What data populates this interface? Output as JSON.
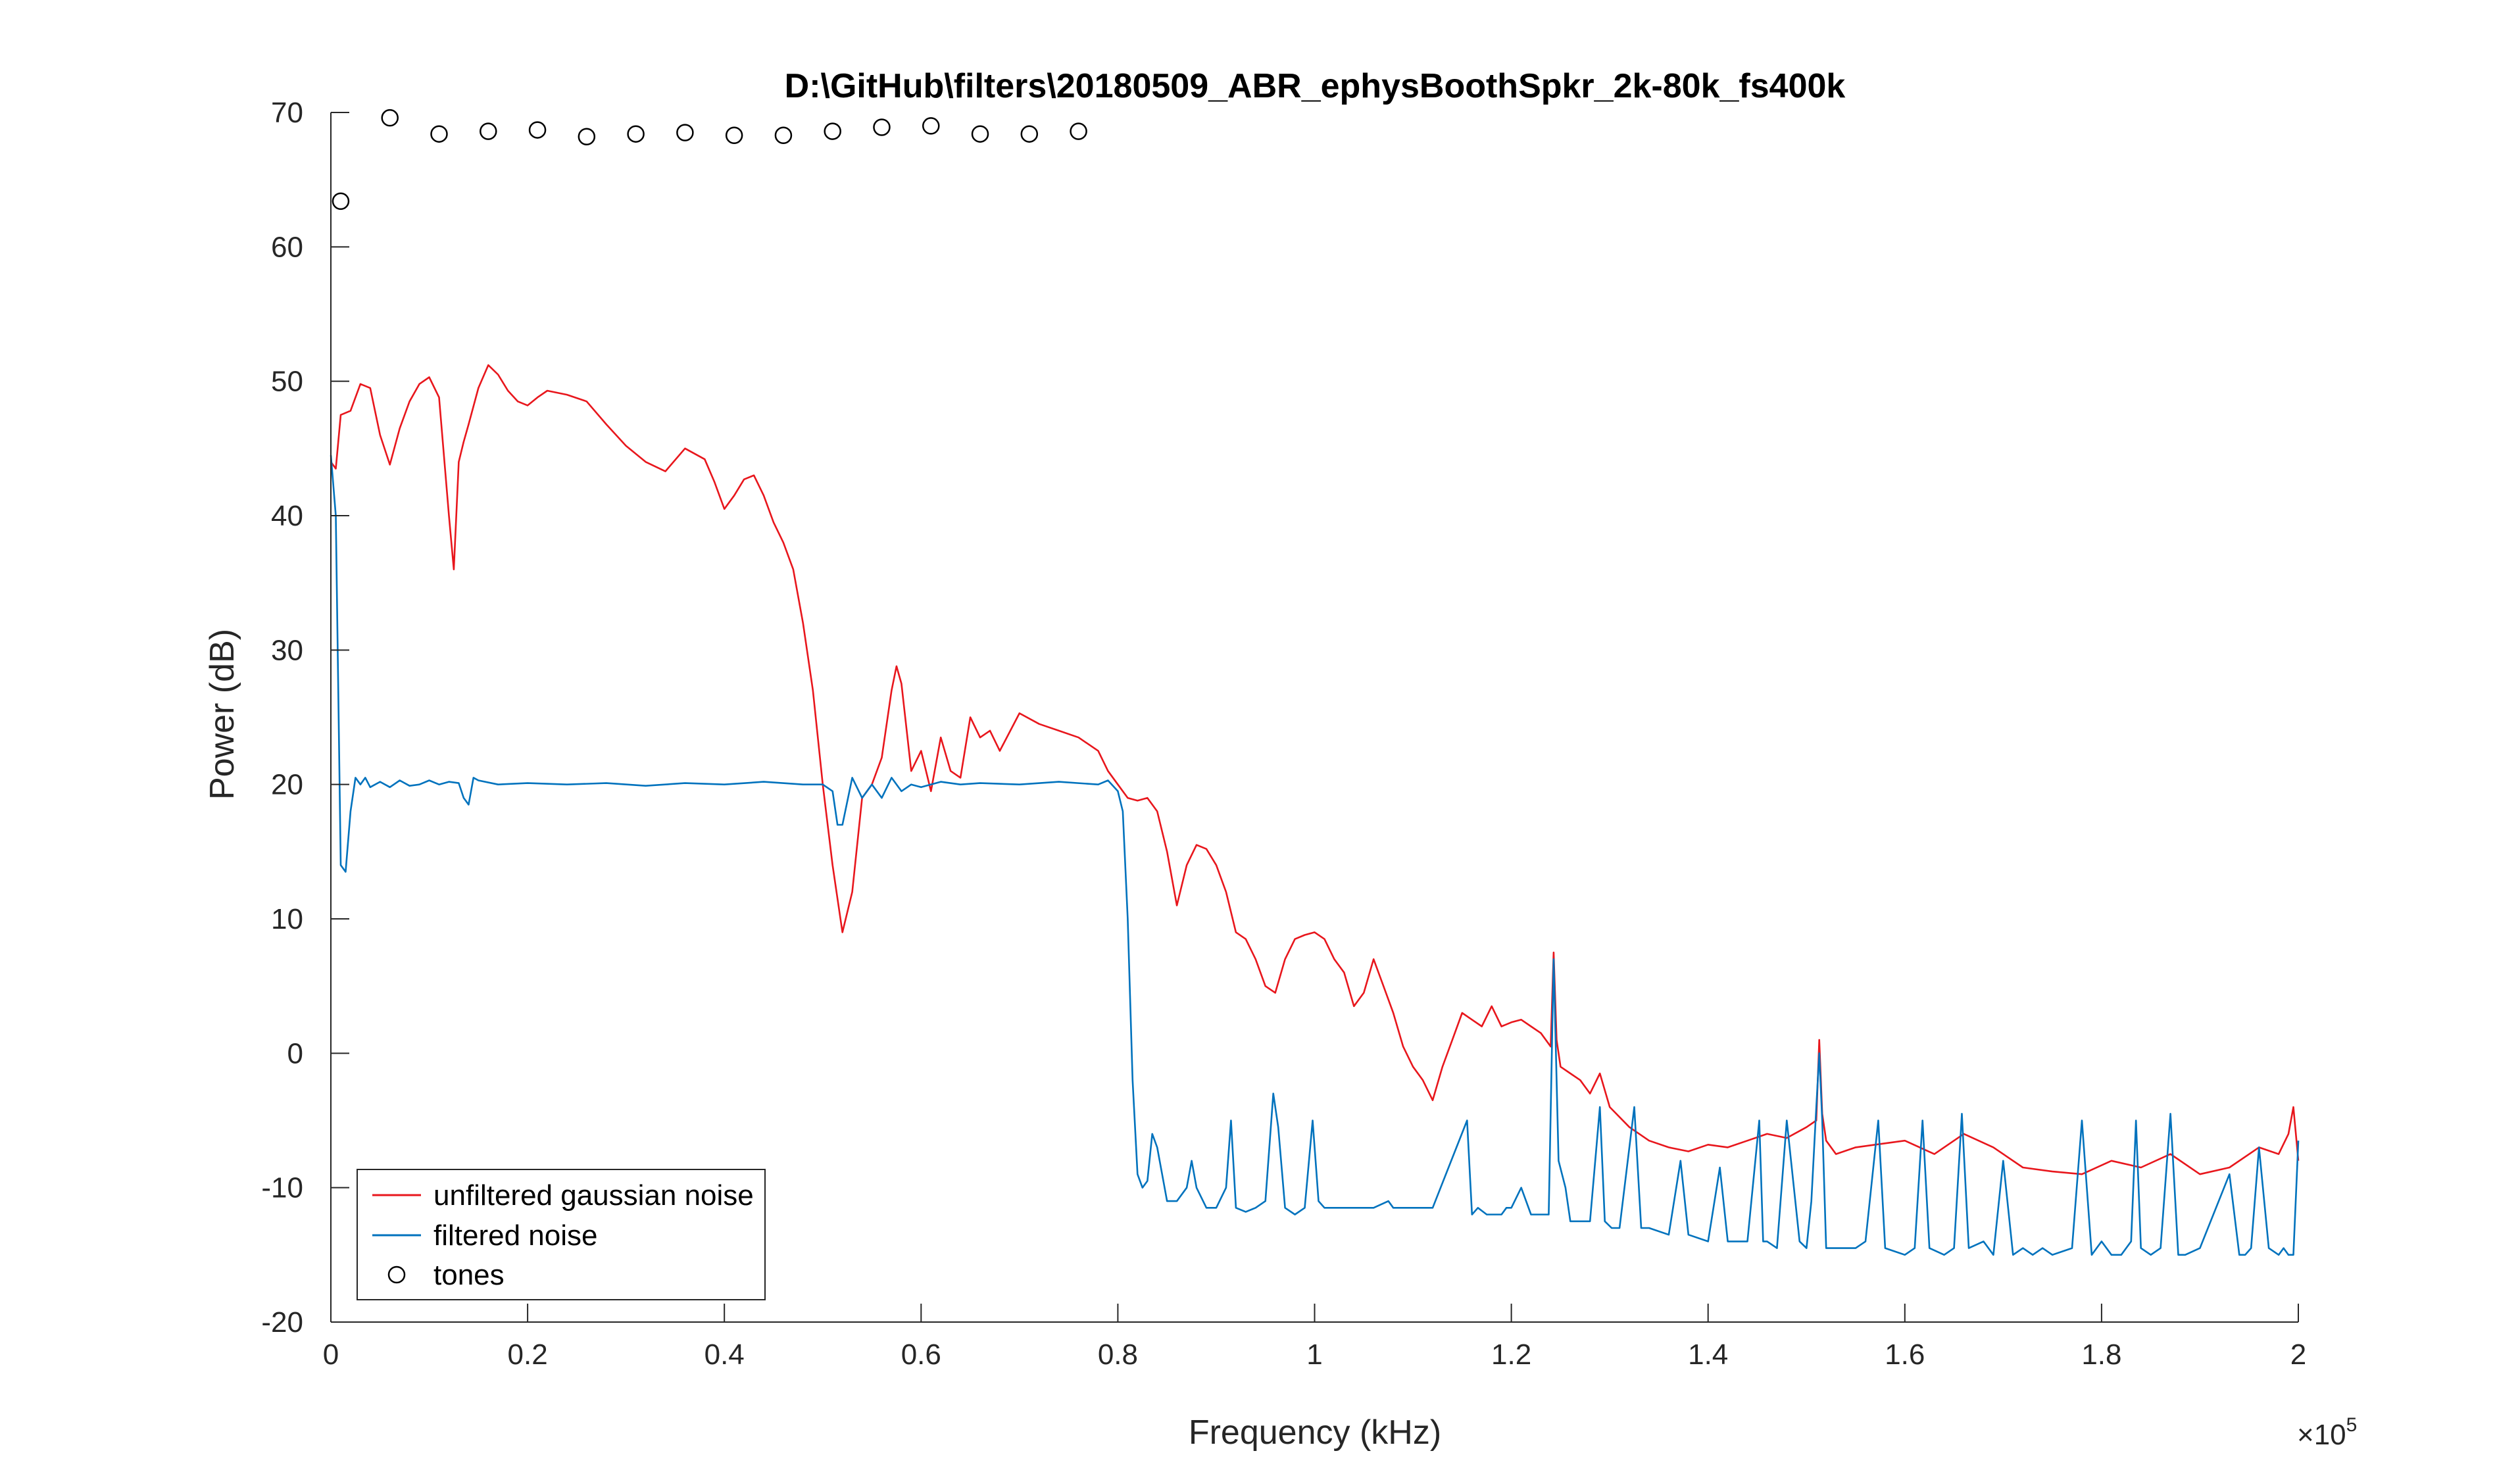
{
  "chart_data": {
    "type": "line",
    "title": "D:\\GitHub\\filters\\20180509_ABR_ephysBoothSpkr_2k-80k_fs400k",
    "xlabel": "Frequency (kHz)",
    "ylabel": "Power (dB)",
    "x_exponent_label": "×10",
    "x_exponent_power": "5",
    "xlim": [
      0,
      200000
    ],
    "ylim": [
      -20,
      70
    ],
    "x_tick_values": [
      0,
      20000,
      40000,
      60000,
      80000,
      100000,
      120000,
      140000,
      160000,
      180000,
      200000
    ],
    "x_tick_labels": [
      "0",
      "0.2",
      "0.4",
      "0.6",
      "0.8",
      "1",
      "1.2",
      "1.4",
      "1.6",
      "1.8",
      "2"
    ],
    "y_tick_values": [
      -20,
      -10,
      0,
      10,
      20,
      30,
      40,
      50,
      60,
      70
    ],
    "y_tick_labels": [
      "-20",
      "-10",
      "0",
      "10",
      "20",
      "30",
      "40",
      "50",
      "60",
      "70"
    ],
    "grid": false,
    "legend_position": "bottom-left",
    "colors": {
      "unfiltered": "#e8161c",
      "filtered": "#0072bd",
      "tones": "#000000",
      "axes": "#262626"
    },
    "series": [
      {
        "name": "unfiltered gaussian noise",
        "style": "line",
        "x": [
          0,
          500,
          1000,
          2000,
          3000,
          4000,
          5000,
          6000,
          7000,
          8000,
          9000,
          10000,
          11000,
          12000,
          12500,
          13000,
          13500,
          14000,
          15000,
          16000,
          17000,
          18000,
          19000,
          20000,
          21000,
          22000,
          24000,
          26000,
          28000,
          30000,
          32000,
          34000,
          36000,
          38000,
          39000,
          40000,
          41000,
          42000,
          43000,
          44000,
          45000,
          46000,
          47000,
          48000,
          49000,
          50000,
          51000,
          52000,
          53000,
          54000,
          55000,
          56000,
          57000,
          57500,
          58000,
          59000,
          60000,
          61000,
          62000,
          63000,
          64000,
          65000,
          66000,
          67000,
          68000,
          70000,
          72000,
          74000,
          76000,
          78000,
          79000,
          80000,
          81000,
          82000,
          83000,
          84000,
          85000,
          86000,
          87000,
          88000,
          89000,
          90000,
          91000,
          92000,
          93000,
          94000,
          95000,
          96000,
          97000,
          98000,
          99000,
          100000,
          101000,
          102000,
          103000,
          104000,
          105000,
          106000,
          107000,
          108000,
          109000,
          110000,
          111000,
          112000,
          113000,
          114000,
          115000,
          116000,
          117000,
          118000,
          119000,
          120000,
          121000,
          122000,
          123000,
          124000,
          124300,
          124600,
          125000,
          126000,
          127000,
          128000,
          129000,
          130000,
          132000,
          134000,
          136000,
          138000,
          140000,
          142000,
          144000,
          146000,
          148000,
          150000,
          151000,
          151300,
          151600,
          152000,
          153000,
          155000,
          157000,
          160000,
          163000,
          166000,
          169000,
          172000,
          175000,
          178000,
          181000,
          184000,
          187000,
          190000,
          193000,
          196000,
          198000,
          199000,
          199500,
          200000
        ],
        "y": [
          44,
          43.5,
          47.5,
          47.8,
          49.8,
          49.5,
          46,
          43.8,
          46.5,
          48.5,
          49.8,
          50.3,
          48.8,
          40,
          36,
          44,
          45.5,
          46.8,
          49.5,
          51.2,
          50.5,
          49.3,
          48.5,
          48.2,
          48.8,
          49.3,
          49.0,
          48.5,
          46.8,
          45.2,
          44.0,
          43.3,
          45.0,
          44.2,
          42.5,
          40.5,
          41.5,
          42.7,
          43.0,
          41.5,
          39.5,
          38.0,
          36.0,
          32.0,
          27.0,
          20.0,
          14.0,
          9.0,
          12.0,
          19.0,
          20.0,
          22.0,
          27.0,
          28.8,
          27.5,
          21.0,
          22.5,
          19.5,
          23.5,
          21.0,
          20.5,
          25.0,
          23.5,
          24.0,
          22.5,
          25.3,
          24.5,
          24.0,
          23.5,
          22.5,
          21.0,
          20.0,
          19.0,
          18.8,
          19.0,
          18.0,
          15.0,
          11.0,
          14.0,
          15.5,
          15.2,
          14.0,
          12.0,
          9.0,
          8.5,
          7.0,
          5.0,
          4.5,
          7.0,
          8.5,
          8.8,
          9.0,
          8.5,
          7.0,
          6.0,
          3.5,
          4.5,
          7.0,
          5.0,
          3.0,
          0.5,
          -1.0,
          -2.0,
          -3.5,
          -1.0,
          1.0,
          3.0,
          2.5,
          2.0,
          3.5,
          2.0,
          2.3,
          2.5,
          2.0,
          1.5,
          0.5,
          7.5,
          1.0,
          -1.0,
          -1.5,
          -2.0,
          -3.0,
          -1.5,
          -4.0,
          -5.5,
          -6.5,
          -7.0,
          -7.3,
          -6.8,
          -7.0,
          -6.5,
          -6.0,
          -6.3,
          -5.5,
          -5.0,
          1.0,
          -4.5,
          -6.5,
          -7.5,
          -7.0,
          -6.8,
          -6.5,
          -7.5,
          -6.0,
          -7.0,
          -8.5,
          -8.8,
          -9.0,
          -8.0,
          -8.5,
          -7.5,
          -9.0,
          -8.5,
          -7.0,
          -7.5,
          -6.0,
          -4.0,
          -8.0
        ]
      },
      {
        "name": "filtered noise",
        "style": "line",
        "x": [
          0,
          500,
          1000,
          1500,
          2000,
          2500,
          3000,
          3500,
          4000,
          5000,
          6000,
          7000,
          8000,
          9000,
          10000,
          11000,
          12000,
          13000,
          13500,
          14000,
          14500,
          15000,
          17000,
          20000,
          24000,
          28000,
          32000,
          36000,
          40000,
          44000,
          48000,
          50000,
          51000,
          51500,
          52000,
          53000,
          54000,
          55000,
          56000,
          57000,
          58000,
          59000,
          60000,
          62000,
          64000,
          66000,
          70000,
          74000,
          78000,
          79000,
          80000,
          80500,
          81000,
          81500,
          82000,
          82500,
          83000,
          83500,
          84000,
          84500,
          85000,
          86000,
          87000,
          87500,
          88000,
          89000,
          90000,
          91000,
          91500,
          92000,
          93000,
          94000,
          95000,
          95800,
          96300,
          97000,
          98000,
          99000,
          99800,
          100400,
          101000,
          102000,
          104000,
          106000,
          107500,
          108000,
          108600,
          109500,
          111000,
          112000,
          115500,
          116000,
          116600,
          117500,
          119000,
          119500,
          120000,
          121000,
          122000,
          123000,
          123800,
          124300,
          124800,
          125500,
          126000,
          128000,
          129000,
          129500,
          130200,
          131000,
          132500,
          133200,
          134000,
          136000,
          137200,
          138000,
          140000,
          141200,
          142000,
          144000,
          145200,
          145600,
          146000,
          147000,
          148000,
          149300,
          150000,
          150500,
          151000,
          151300,
          151600,
          152000,
          153000,
          154000,
          155000,
          156000,
          157300,
          158000,
          160000,
          161000,
          161800,
          162500,
          164000,
          165000,
          165800,
          166500,
          168000,
          169000,
          170000,
          171000,
          172000,
          173000,
          174000,
          175000,
          177000,
          178000,
          179000,
          180000,
          181000,
          182000,
          183000,
          183500,
          184000,
          185000,
          186000,
          187000,
          187800,
          188500,
          190000,
          193000,
          194000,
          194600,
          195200,
          196000,
          197000,
          198000,
          198500,
          199000,
          199500,
          200000
        ],
        "y": [
          44.5,
          40,
          14,
          13.5,
          18,
          20.5,
          20,
          20.5,
          19.8,
          20.2,
          19.8,
          20.3,
          19.9,
          20.0,
          20.3,
          20.0,
          20.2,
          20.1,
          19,
          18.5,
          20.5,
          20.3,
          20.0,
          20.1,
          20.0,
          20.1,
          19.9,
          20.1,
          20.0,
          20.2,
          20.0,
          20.0,
          19.5,
          17.0,
          17.0,
          20.5,
          19.0,
          20.0,
          19.0,
          20.5,
          19.5,
          20.0,
          19.8,
          20.2,
          20.0,
          20.1,
          20.0,
          20.2,
          20.0,
          20.3,
          19.5,
          18.0,
          10.0,
          -2.0,
          -9.0,
          -10.0,
          -9.5,
          -6.0,
          -7.0,
          -9.0,
          -11.0,
          -11.0,
          -10.0,
          -8.0,
          -10.0,
          -11.5,
          -11.5,
          -10.0,
          -5.0,
          -11.5,
          -11.8,
          -11.5,
          -11.0,
          -3.0,
          -5.5,
          -11.5,
          -12.0,
          -11.5,
          -5.0,
          -11.0,
          -11.5,
          -11.5,
          -11.5,
          -11.5,
          -11.0,
          -11.5,
          -11.5,
          -11.5,
          -11.5,
          -11.5,
          -5.0,
          -12.0,
          -11.5,
          -12.0,
          -12.0,
          -11.5,
          -11.5,
          -10.0,
          -12.0,
          -12.0,
          -12.0,
          7.0,
          -8.0,
          -10.0,
          -12.5,
          -12.5,
          -4.0,
          -12.5,
          -13.0,
          -13.0,
          -4.0,
          -13.0,
          -13.0,
          -13.5,
          -8.0,
          -13.5,
          -14.0,
          -8.5,
          -14.0,
          -14.0,
          -5.0,
          -14.0,
          -14.0,
          -14.5,
          -5.0,
          -14.0,
          -14.5,
          -11.0,
          -4.0,
          0.0,
          -5.0,
          -14.5,
          -14.5,
          -14.5,
          -14.5,
          -14.0,
          -5.0,
          -14.5,
          -15.0,
          -14.5,
          -5.0,
          -14.5,
          -15.0,
          -14.5,
          -4.5,
          -14.5,
          -14.0,
          -15.0,
          -8.0,
          -15.0,
          -14.5,
          -15.0,
          -14.5,
          -15.0,
          -14.5,
          -5.0,
          -15.0,
          -14.0,
          -15.0,
          -15.0,
          -14.0,
          -5.0,
          -14.5,
          -15.0,
          -14.5,
          -4.5,
          -15.0,
          -15.0,
          -14.5,
          -9.0,
          -15.0,
          -15.0,
          -14.5,
          -7.0,
          -14.5,
          -15.0,
          -14.5,
          -15.0,
          -15.0,
          -6.5
        ]
      },
      {
        "name": "tones",
        "style": "markers",
        "x": [
          1000,
          6000,
          11000,
          16000,
          21000,
          26000,
          31000,
          36000,
          41000,
          46000,
          51000,
          56000,
          61000,
          66000,
          71000,
          76000
        ],
        "y": [
          63.4,
          69.6,
          68.4,
          68.6,
          68.7,
          68.2,
          68.4,
          68.5,
          68.3,
          68.3,
          68.6,
          68.9,
          69.0,
          68.4,
          68.4,
          68.6
        ]
      }
    ]
  }
}
